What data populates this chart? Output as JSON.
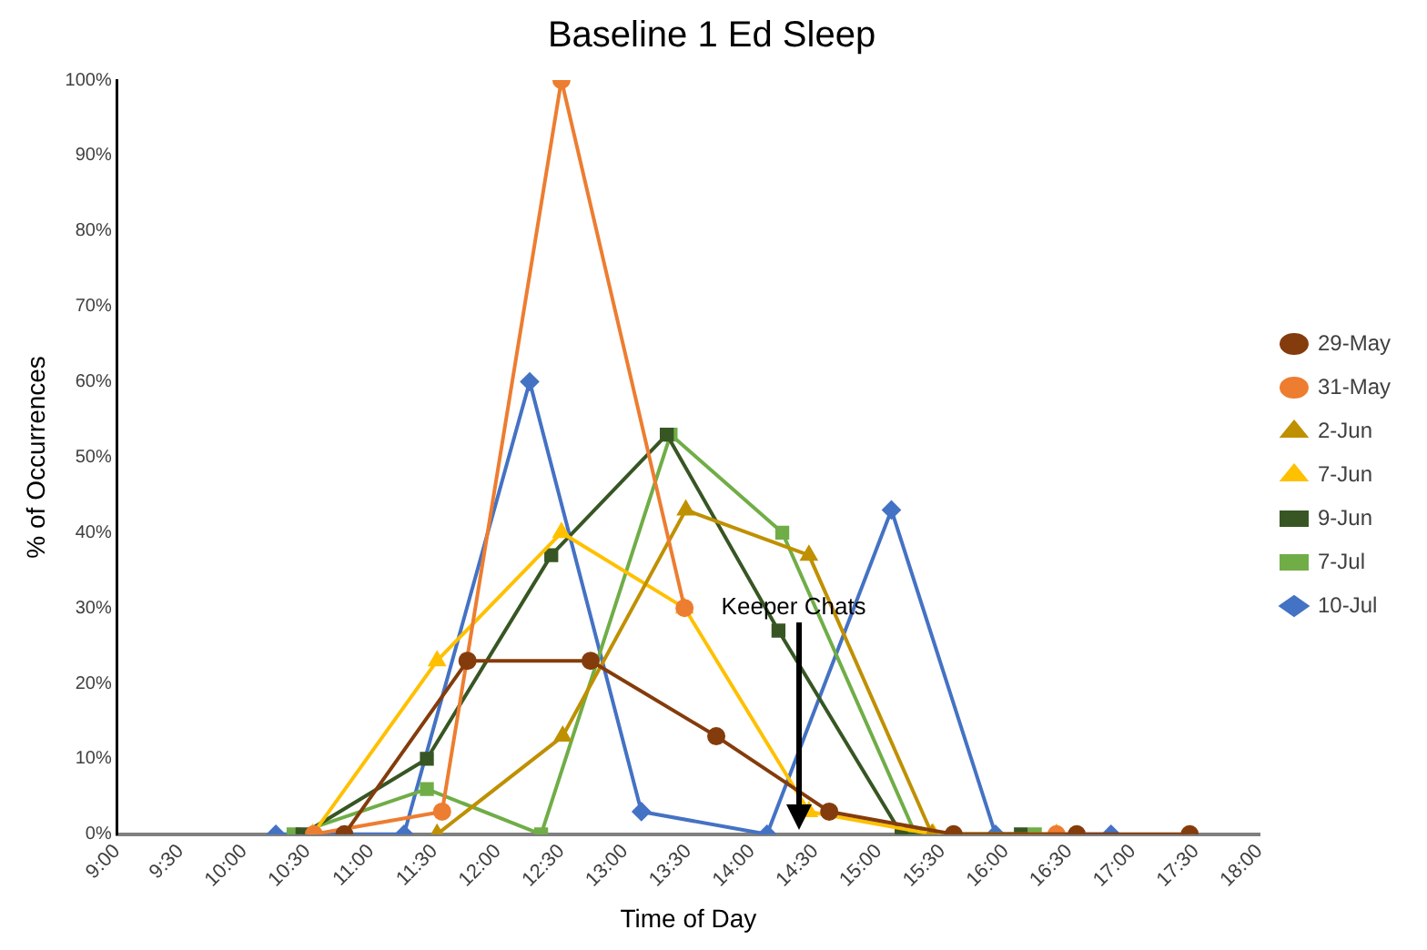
{
  "chart_data": {
    "type": "line",
    "title": "Baseline 1 Ed Sleep",
    "xlabel": "Time of Day",
    "ylabel": "% of Occurrences",
    "xlim": [
      9,
      18
    ],
    "xticks": [
      {
        "value": 9,
        "label": "9:00"
      },
      {
        "value": 9.5,
        "label": "9:30"
      },
      {
        "value": 10,
        "label": "10:00"
      },
      {
        "value": 10.5,
        "label": "10:30"
      },
      {
        "value": 11,
        "label": "11:00"
      },
      {
        "value": 11.5,
        "label": "11:30"
      },
      {
        "value": 12,
        "label": "12:00"
      },
      {
        "value": 12.5,
        "label": "12:30"
      },
      {
        "value": 13,
        "label": "13:00"
      },
      {
        "value": 13.5,
        "label": "13:30"
      },
      {
        "value": 14,
        "label": "14:00"
      },
      {
        "value": 14.5,
        "label": "14:30"
      },
      {
        "value": 15,
        "label": "15:00"
      },
      {
        "value": 15.5,
        "label": "15:30"
      },
      {
        "value": 16,
        "label": "16:00"
      },
      {
        "value": 16.5,
        "label": "16:30"
      },
      {
        "value": 17,
        "label": "17:00"
      },
      {
        "value": 17.5,
        "label": "17:30"
      },
      {
        "value": 18,
        "label": "18:00"
      }
    ],
    "ylim": [
      0,
      100
    ],
    "yticks": [
      {
        "value": 0,
        "label": "0%"
      },
      {
        "value": 10,
        "label": "10%"
      },
      {
        "value": 20,
        "label": "20%"
      },
      {
        "value": 30,
        "label": "30%"
      },
      {
        "value": 40,
        "label": "40%"
      },
      {
        "value": 50,
        "label": "50%"
      },
      {
        "value": 60,
        "label": "60%"
      },
      {
        "value": 70,
        "label": "70%"
      },
      {
        "value": 80,
        "label": "80%"
      },
      {
        "value": 90,
        "label": "90%"
      },
      {
        "value": 100,
        "label": "100%"
      }
    ],
    "grid": false,
    "legend": "right",
    "annotations": [
      "Keeper Chats"
    ],
    "series": [
      {
        "name": "29-May",
        "color": "#843c0c",
        "marker": "circle",
        "x": [
          10.79,
          11.76,
          12.73,
          13.72,
          14.61,
          15.59,
          16.56,
          17.45
        ],
        "values": [
          0,
          23,
          23,
          13,
          3,
          0,
          0,
          0
        ]
      },
      {
        "name": "31-May",
        "color": "#ed7d31",
        "marker": "circle",
        "x": [
          10.55,
          11.56,
          12.5,
          13.47,
          14.9,
          16.4
        ],
        "values": [
          0,
          3,
          100,
          30,
          null,
          0
        ]
      },
      {
        "name": "2-Jun",
        "color": "#bf9000",
        "marker": "triangle",
        "x": [
          11.52,
          12.51,
          13.48,
          14.45,
          15.42
        ],
        "values": [
          0,
          13,
          43,
          37,
          0
        ]
      },
      {
        "name": "7-Jun",
        "color": "#ffc000",
        "marker": "triangle",
        "x": [
          10.54,
          11.52,
          12.5,
          13.47,
          14.45,
          15.43,
          16.4
        ],
        "values": [
          0,
          23,
          40,
          30,
          3,
          0,
          0
        ]
      },
      {
        "name": "9-Jun",
        "color": "#375623",
        "marker": "square",
        "x": [
          10.46,
          11.44,
          12.42,
          13.33,
          14.21,
          15.18,
          16.12
        ],
        "values": [
          0,
          10,
          37,
          53,
          27,
          0,
          0
        ]
      },
      {
        "name": "7-Jul",
        "color": "#70ad47",
        "marker": "square",
        "x": [
          10.39,
          11.44,
          12.34,
          13.36,
          14.24,
          15.29,
          16.23
        ],
        "values": [
          0,
          6,
          0,
          53,
          40,
          0,
          0
        ]
      },
      {
        "name": "10-Jul",
        "color": "#4472c4",
        "marker": "diamond",
        "x": [
          10.25,
          11.26,
          12.25,
          13.13,
          14.12,
          15.1,
          15.92,
          16.83
        ],
        "values": [
          0,
          0,
          60,
          3,
          0,
          43,
          0,
          0
        ]
      }
    ]
  }
}
